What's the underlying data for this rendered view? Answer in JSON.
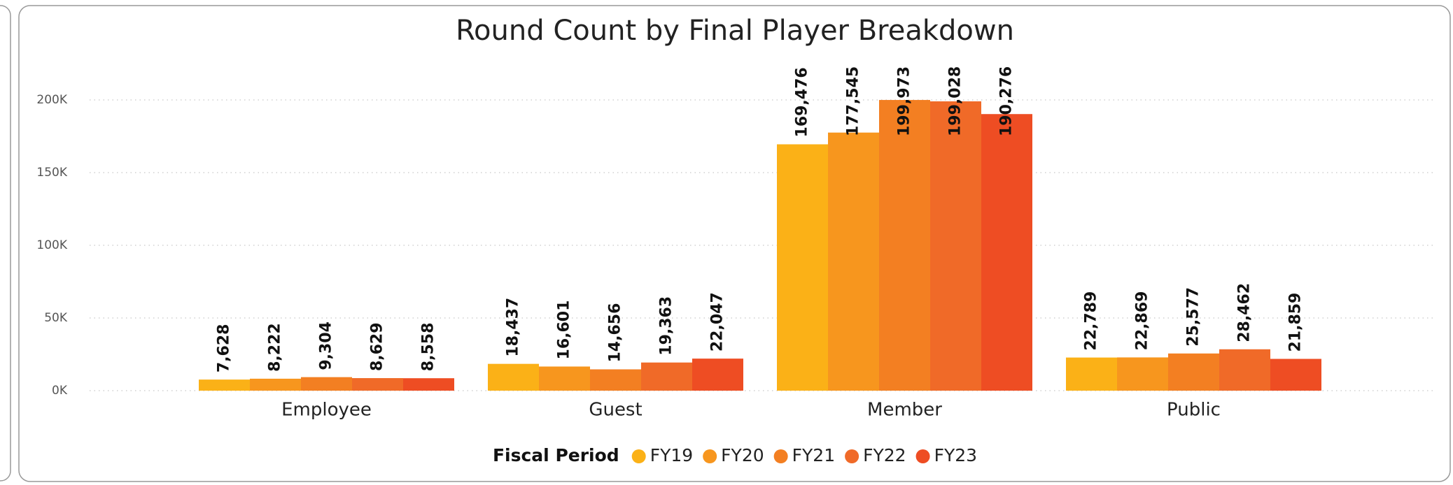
{
  "chart_data": {
    "type": "bar",
    "title": "Round Count by Final Player Breakdown",
    "categories": [
      "Employee",
      "Guest",
      "Member",
      "Public"
    ],
    "legend_title": "Fiscal Period",
    "series": [
      {
        "name": "FY19",
        "color": "#FBB117",
        "values": [
          7628,
          18437,
          169476,
          22789
        ],
        "value_labels": [
          "7,628",
          "18,437",
          "169,476",
          "22,789"
        ]
      },
      {
        "name": "FY20",
        "color": "#F7961E",
        "values": [
          8222,
          16601,
          177545,
          22869
        ],
        "value_labels": [
          "8,222",
          "16,601",
          "177,545",
          "22,869"
        ]
      },
      {
        "name": "FY21",
        "color": "#F37F22",
        "values": [
          9304,
          14656,
          199973,
          25577
        ],
        "value_labels": [
          "9,304",
          "14,656",
          "199,973",
          "25,577"
        ]
      },
      {
        "name": "FY22",
        "color": "#F06A28",
        "values": [
          8629,
          19363,
          199028,
          28462
        ],
        "value_labels": [
          "8,629",
          "19,363",
          "199,028",
          "28,462"
        ]
      },
      {
        "name": "FY23",
        "color": "#EE4D23",
        "values": [
          8558,
          22047,
          190276,
          21859
        ],
        "value_labels": [
          "8,558",
          "22,047",
          "190,276",
          "21,859"
        ]
      }
    ],
    "ylim": [
      0,
      200000
    ],
    "yticks": [
      {
        "value": 0,
        "label": "0K"
      },
      {
        "value": 50000,
        "label": "50K"
      },
      {
        "value": 100000,
        "label": "100K"
      },
      {
        "value": 150000,
        "label": "150K"
      },
      {
        "value": 200000,
        "label": "200K"
      }
    ],
    "grid": true,
    "legend_position": "bottom"
  }
}
